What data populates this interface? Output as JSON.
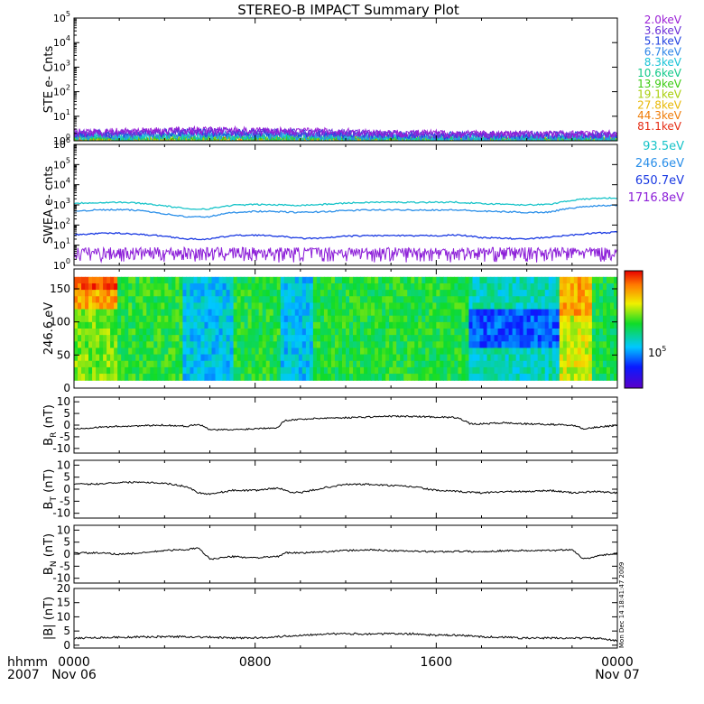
{
  "title": "STEREO-B IMPACT Summary Plot",
  "x_axis": {
    "ticks": [
      "0000",
      "0800",
      "1600",
      "0000"
    ],
    "dates": [
      "Nov 06",
      "",
      "",
      "Nov 07"
    ],
    "corner_label": "hhmm",
    "corner_year": "2007"
  },
  "side_stamp": "Mon Dec 14 18:41:47 2009",
  "chart_data": [
    {
      "type": "line",
      "panel": "STE",
      "ylabel": "STE e- Cnts",
      "yscale": "log",
      "ylim": [
        1,
        100000
      ],
      "y_ticks": [
        "10^0",
        "10^1",
        "10^2",
        "10^3",
        "10^4",
        "10^5"
      ],
      "series": [
        {
          "name": "2.0keV",
          "color": "#9a1ed6",
          "values": [
            2.2,
            2.4,
            2.6,
            2.7,
            2.6,
            2.5,
            2.3,
            2.1,
            2.0,
            1.9,
            1.9,
            1.9,
            1.9
          ]
        },
        {
          "name": "3.6keV",
          "color": "#6b2fd8",
          "values": [
            2.0,
            2.2,
            2.4,
            2.5,
            2.4,
            2.3,
            2.1,
            1.9,
            1.8,
            1.8,
            1.8,
            1.8,
            1.8
          ]
        },
        {
          "name": "5.1keV",
          "color": "#1f3fe0",
          "values": [
            1.9,
            2.0,
            2.2,
            2.3,
            2.2,
            2.1,
            1.9,
            1.8,
            1.7,
            1.7,
            1.7,
            1.7,
            1.7
          ]
        },
        {
          "name": "6.7keV",
          "color": "#2f86e8",
          "values": [
            1.6,
            1.7,
            1.8,
            1.8,
            1.8,
            1.7,
            1.6,
            1.5,
            1.4,
            1.4,
            1.4,
            1.4,
            1.4
          ]
        },
        {
          "name": "8.3keV",
          "color": "#19c3d6",
          "values": [
            1.5,
            1.5,
            1.6,
            1.6,
            1.6,
            1.5,
            1.4,
            1.3,
            1.3,
            1.3,
            1.3,
            1.3,
            1.3
          ]
        },
        {
          "name": "10.6keV",
          "color": "#12c98a",
          "values": [
            1.4,
            1.4,
            1.4,
            1.5,
            1.4,
            1.4,
            1.3,
            1.2,
            1.2,
            1.2,
            1.2,
            1.2,
            1.2
          ]
        },
        {
          "name": "13.9keV",
          "color": "#3ccc12",
          "values": [
            1.3,
            1.3,
            1.3,
            1.3,
            1.3,
            1.3,
            1.2,
            1.2,
            1.1,
            1.1,
            1.1,
            1.1,
            1.1
          ]
        },
        {
          "name": "19.1keV",
          "color": "#a9cf0c",
          "values": [
            1.1,
            1.1,
            1.1,
            1.1,
            1.1,
            1.1,
            1.1,
            1.1,
            1.1,
            1.1,
            1.1,
            1.1,
            1.1
          ]
        },
        {
          "name": "27.8keV",
          "color": "#e8b806",
          "values": [
            1.05,
            1.05,
            1.05,
            1.05,
            1.05,
            1.05,
            1.05,
            1.05,
            1.05,
            1.05,
            1.05,
            1.05,
            1.05
          ]
        },
        {
          "name": "44.3keV",
          "color": "#ef7c08",
          "values": [
            1.03,
            1.03,
            1.03,
            1.03,
            1.03,
            1.03,
            1.03,
            1.03,
            1.03,
            1.03,
            1.03,
            1.03,
            1.03
          ]
        },
        {
          "name": "81.1keV",
          "color": "#e52b12",
          "values": [
            1.01,
            1.01,
            1.01,
            1.01,
            1.01,
            1.01,
            1.01,
            1.01,
            1.01,
            1.01,
            1.01,
            1.01,
            1.01
          ]
        }
      ]
    },
    {
      "type": "line",
      "panel": "SWEA",
      "ylabel": "SWEA e- cnts",
      "yscale": "log",
      "ylim": [
        1,
        1000000
      ],
      "y_ticks": [
        "10^0",
        "10^1",
        "10^2",
        "10^3",
        "10^4",
        "10^5",
        "10^6"
      ],
      "series": [
        {
          "name": "1716.8eV",
          "color": "#8c1ed8",
          "values": [
            4,
            4,
            4,
            4,
            4,
            4,
            4,
            4,
            4,
            4,
            4,
            4,
            4,
            4,
            4,
            4,
            4,
            4,
            4,
            4,
            4,
            4,
            4,
            4,
            4
          ]
        },
        {
          "name": "650.7eV",
          "color": "#1838e2",
          "values": [
            32,
            38,
            40,
            34,
            28,
            20,
            20,
            30,
            32,
            28,
            22,
            22,
            28,
            30,
            30,
            29,
            30,
            32,
            24,
            22,
            20,
            25,
            32,
            40,
            44
          ]
        },
        {
          "name": "246.6eV",
          "color": "#2a8fe9",
          "values": [
            500,
            560,
            580,
            520,
            360,
            250,
            260,
            420,
            480,
            460,
            420,
            460,
            520,
            560,
            560,
            560,
            560,
            560,
            480,
            460,
            420,
            440,
            700,
            900,
            980
          ]
        },
        {
          "name": "93.5eV",
          "color": "#18c4c9",
          "values": [
            1200,
            1300,
            1350,
            1200,
            900,
            620,
            640,
            960,
            1050,
            1000,
            960,
            1050,
            1220,
            1340,
            1360,
            1340,
            1360,
            1350,
            1150,
            1100,
            1000,
            1050,
            1700,
            2100,
            2200
          ]
        }
      ]
    },
    {
      "type": "heatmap",
      "panel": "PAD",
      "ylabel": "246.6 eV",
      "ylim": [
        0,
        180
      ],
      "y_ticks": [
        0,
        50,
        100,
        150
      ],
      "colorbar_label": "10^5"
    },
    {
      "type": "line",
      "panel": "BR",
      "ylabel": "B_R (nT)",
      "ylim": [
        -12,
        12
      ],
      "y_ticks": [
        -10,
        -5,
        0,
        5,
        10
      ],
      "x": [
        0,
        1,
        2,
        3,
        4,
        5,
        5.5,
        6,
        7,
        8,
        9,
        9.3,
        10,
        11,
        12,
        13,
        14,
        15,
        16,
        17,
        17.5,
        18,
        19,
        20,
        21,
        22,
        22.5,
        23,
        24
      ],
      "values": [
        -1.5,
        -1.0,
        -0.5,
        -0.3,
        0,
        -0.5,
        0.5,
        -2.0,
        -2.0,
        -1.5,
        -1.0,
        2.0,
        2.5,
        3.0,
        3.2,
        3.5,
        3.8,
        3.7,
        3.5,
        3.2,
        0.5,
        0.5,
        1.0,
        0.5,
        0.3,
        0.0,
        -1.5,
        -1.0,
        0.0
      ]
    },
    {
      "type": "line",
      "panel": "BT",
      "ylabel": "B_T (nT)",
      "ylim": [
        -12,
        12
      ],
      "y_ticks": [
        -10,
        -5,
        0,
        5,
        10
      ],
      "x": [
        0,
        1,
        2,
        3,
        4,
        5,
        5.5,
        6,
        7,
        8,
        9,
        9.5,
        10,
        11,
        12,
        13,
        14,
        15,
        16,
        17,
        18,
        19,
        20,
        21,
        22,
        23,
        24
      ],
      "values": [
        2.0,
        2.2,
        2.8,
        3.0,
        2.5,
        1.0,
        -1.5,
        -2.0,
        -0.5,
        -0.5,
        0.5,
        -1.0,
        -1.5,
        0.5,
        2.0,
        2.0,
        1.5,
        1.0,
        -0.5,
        -1.0,
        -1.5,
        -1.0,
        -1.0,
        -0.5,
        -1.5,
        -1.0,
        -1.5
      ]
    },
    {
      "type": "line",
      "panel": "BN",
      "ylabel": "B_N (nT)",
      "ylim": [
        -12,
        12
      ],
      "y_ticks": [
        -10,
        -5,
        0,
        5,
        10
      ],
      "x": [
        0,
        1,
        2,
        3,
        4,
        5,
        5.5,
        6,
        7,
        8,
        9,
        9.3,
        10,
        11,
        12,
        13,
        14,
        15,
        16,
        17,
        18,
        19,
        20,
        21,
        22,
        22.5,
        23,
        24
      ],
      "values": [
        0.5,
        0.5,
        0.0,
        0.5,
        1.5,
        2.0,
        2.5,
        -2.0,
        -1.0,
        -1.5,
        -1.0,
        0.5,
        0.5,
        1.0,
        1.5,
        1.8,
        1.5,
        1.2,
        1.0,
        1.2,
        1.0,
        1.5,
        1.5,
        1.5,
        2.0,
        -2.0,
        -1.0,
        0.5
      ]
    },
    {
      "type": "line",
      "panel": "BMAG",
      "ylabel": "|B| (nT)",
      "ylim": [
        -1,
        20
      ],
      "y_ticks": [
        0,
        5,
        10,
        15,
        20
      ],
      "x": [
        0,
        2,
        4,
        5,
        6,
        7,
        8,
        9,
        10,
        11,
        12,
        13,
        14,
        15,
        16,
        17,
        18,
        19,
        20,
        21,
        22,
        23,
        24
      ],
      "values": [
        2.5,
        2.8,
        3.0,
        3.0,
        2.8,
        2.5,
        2.6,
        3.0,
        3.5,
        4.0,
        4.0,
        4.0,
        4.0,
        4.0,
        3.5,
        3.5,
        3.0,
        2.8,
        2.5,
        2.5,
        2.5,
        2.5,
        1.5
      ]
    }
  ],
  "colors": {
    "axis": "#000000",
    "background": "#ffffff"
  }
}
